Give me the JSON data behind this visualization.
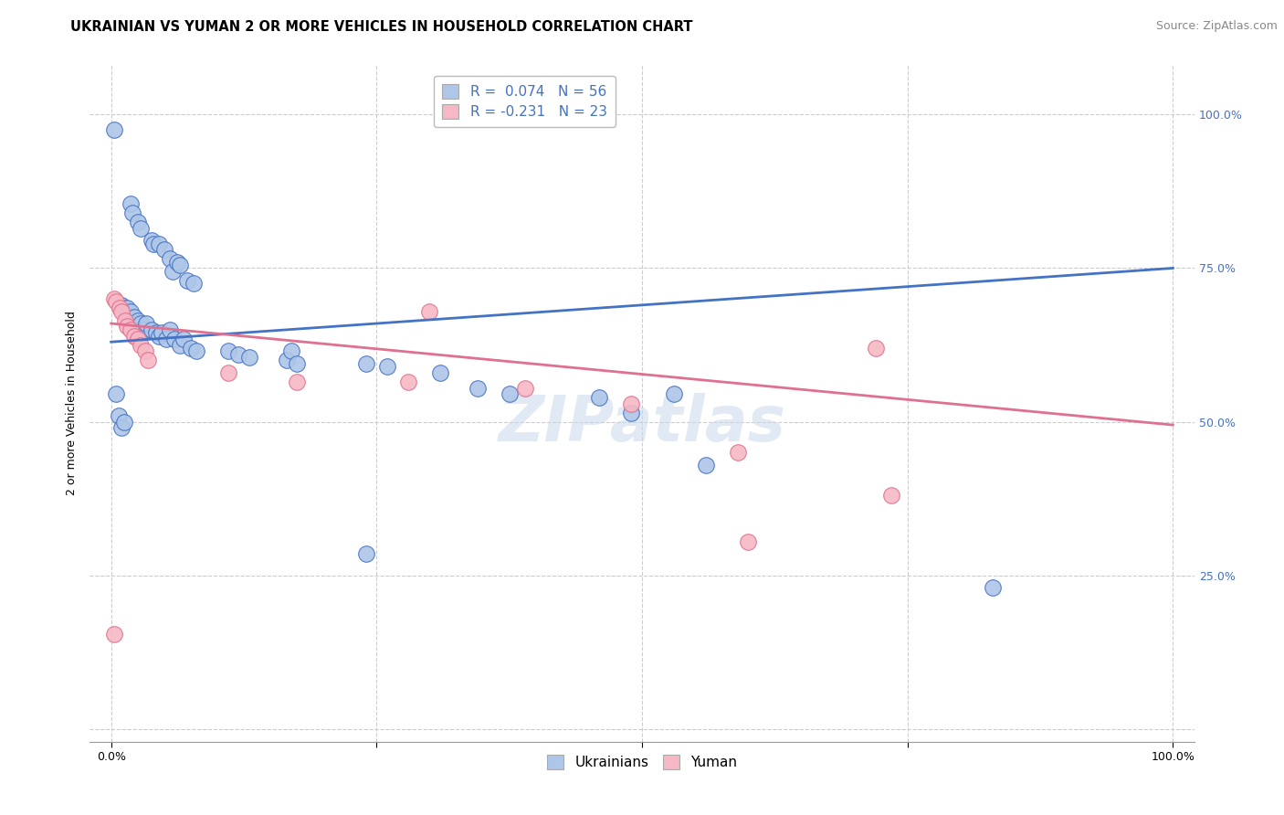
{
  "title": "UKRAINIAN VS YUMAN 2 OR MORE VEHICLES IN HOUSEHOLD CORRELATION CHART",
  "source": "Source: ZipAtlas.com",
  "ylabel": "2 or more Vehicles in Household",
  "watermark": "ZIPatlas",
  "legend_blue_r": "R =  0.074",
  "legend_blue_n": "N = 56",
  "legend_pink_r": "R = -0.231",
  "legend_pink_n": "N = 23",
  "blue_color": "#AEC6E8",
  "pink_color": "#F5B8C4",
  "trendline_blue": "#4472C4",
  "trendline_pink": "#E07090",
  "xlim": [
    -0.02,
    1.02
  ],
  "ylim": [
    -0.02,
    1.08
  ],
  "background_color": "#FFFFFF",
  "grid_color": "#CCCCCC",
  "title_fontsize": 10.5,
  "axis_fontsize": 9,
  "tick_fontsize": 9,
  "source_fontsize": 9,
  "legend_fontsize": 11,
  "watermark_fontsize": 50,
  "watermark_color": "#C8D8EC",
  "watermark_alpha": 0.55,
  "blue_points": [
    [
      0.003,
      0.975
    ],
    [
      0.018,
      0.855
    ],
    [
      0.02,
      0.84
    ],
    [
      0.025,
      0.825
    ],
    [
      0.028,
      0.815
    ],
    [
      0.038,
      0.795
    ],
    [
      0.04,
      0.79
    ],
    [
      0.045,
      0.79
    ],
    [
      0.05,
      0.78
    ],
    [
      0.055,
      0.765
    ],
    [
      0.058,
      0.745
    ],
    [
      0.062,
      0.76
    ],
    [
      0.065,
      0.755
    ],
    [
      0.072,
      0.73
    ],
    [
      0.078,
      0.725
    ],
    [
      0.01,
      0.69
    ],
    [
      0.012,
      0.685
    ],
    [
      0.015,
      0.685
    ],
    [
      0.018,
      0.68
    ],
    [
      0.022,
      0.67
    ],
    [
      0.025,
      0.665
    ],
    [
      0.028,
      0.66
    ],
    [
      0.03,
      0.65
    ],
    [
      0.033,
      0.66
    ],
    [
      0.038,
      0.65
    ],
    [
      0.042,
      0.645
    ],
    [
      0.045,
      0.64
    ],
    [
      0.048,
      0.645
    ],
    [
      0.052,
      0.635
    ],
    [
      0.055,
      0.65
    ],
    [
      0.06,
      0.635
    ],
    [
      0.065,
      0.625
    ],
    [
      0.068,
      0.635
    ],
    [
      0.075,
      0.62
    ],
    [
      0.08,
      0.615
    ],
    [
      0.11,
      0.615
    ],
    [
      0.12,
      0.61
    ],
    [
      0.13,
      0.605
    ],
    [
      0.165,
      0.6
    ],
    [
      0.17,
      0.615
    ],
    [
      0.175,
      0.595
    ],
    [
      0.24,
      0.595
    ],
    [
      0.26,
      0.59
    ],
    [
      0.31,
      0.58
    ],
    [
      0.345,
      0.555
    ],
    [
      0.375,
      0.545
    ],
    [
      0.46,
      0.54
    ],
    [
      0.49,
      0.515
    ],
    [
      0.53,
      0.545
    ],
    [
      0.56,
      0.43
    ],
    [
      0.24,
      0.285
    ],
    [
      0.83,
      0.23
    ],
    [
      0.005,
      0.545
    ],
    [
      0.007,
      0.51
    ],
    [
      0.01,
      0.49
    ],
    [
      0.012,
      0.5
    ]
  ],
  "pink_points": [
    [
      0.003,
      0.7
    ],
    [
      0.005,
      0.695
    ],
    [
      0.008,
      0.685
    ],
    [
      0.01,
      0.68
    ],
    [
      0.013,
      0.665
    ],
    [
      0.015,
      0.655
    ],
    [
      0.018,
      0.65
    ],
    [
      0.022,
      0.64
    ],
    [
      0.025,
      0.635
    ],
    [
      0.028,
      0.625
    ],
    [
      0.032,
      0.615
    ],
    [
      0.035,
      0.6
    ],
    [
      0.11,
      0.58
    ],
    [
      0.175,
      0.565
    ],
    [
      0.28,
      0.565
    ],
    [
      0.3,
      0.68
    ],
    [
      0.39,
      0.555
    ],
    [
      0.49,
      0.53
    ],
    [
      0.59,
      0.45
    ],
    [
      0.72,
      0.62
    ],
    [
      0.735,
      0.38
    ],
    [
      0.003,
      0.155
    ],
    [
      0.6,
      0.305
    ]
  ],
  "blue_trendline_x": [
    0.0,
    1.0
  ],
  "blue_trendline_y": [
    0.63,
    0.75
  ],
  "pink_trendline_x": [
    0.0,
    1.0
  ],
  "pink_trendline_y": [
    0.66,
    0.495
  ]
}
